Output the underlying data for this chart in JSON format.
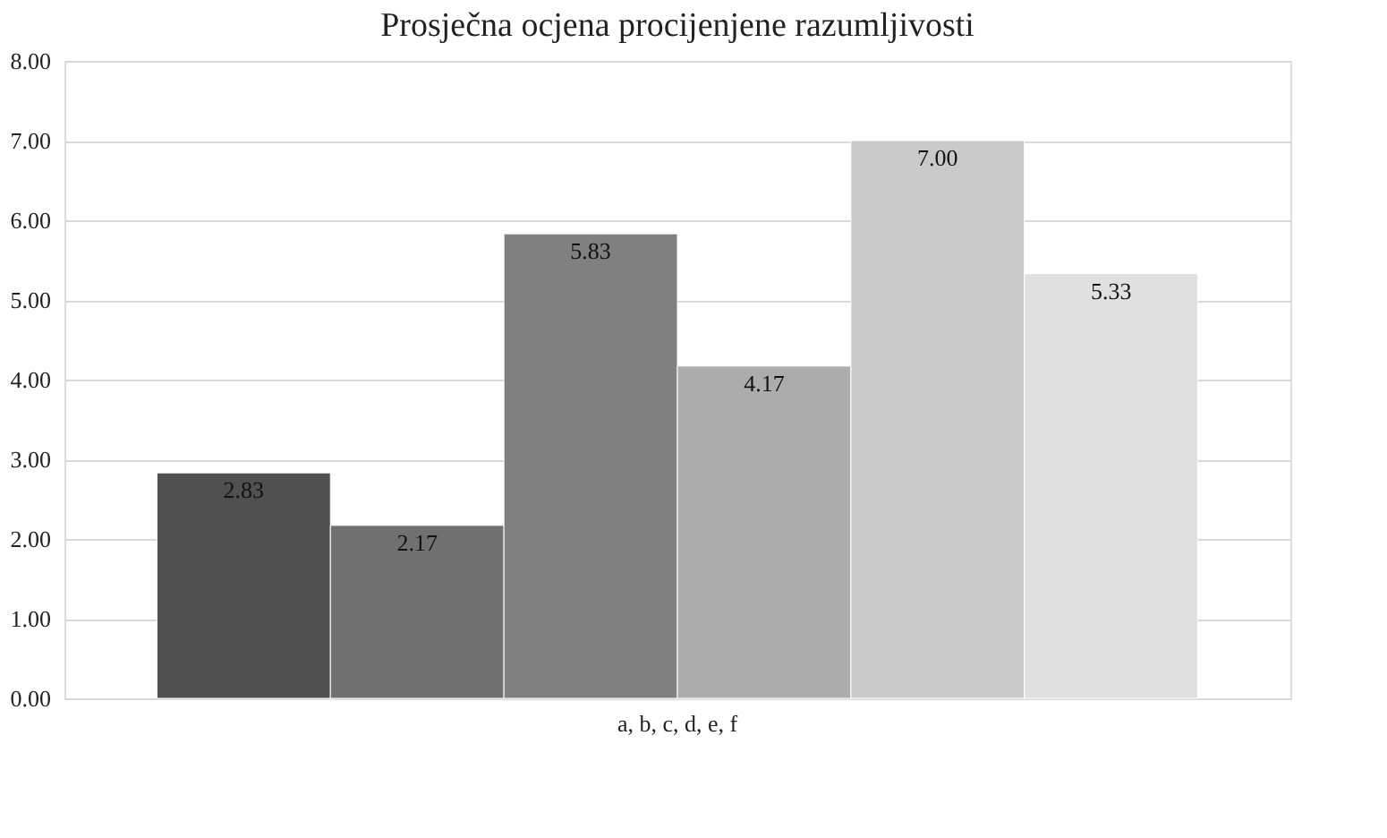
{
  "chart_data": {
    "type": "bar",
    "title": "Prosječna ocjena procijenjene razumljivosti",
    "categories": [
      "a, b, c, d, e, f"
    ],
    "series": [
      {
        "color": "#505050",
        "values": [
          2.83
        ],
        "value_labels": [
          "2.83"
        ]
      },
      {
        "color": "#707070",
        "values": [
          2.17
        ],
        "value_labels": [
          "2.17"
        ]
      },
      {
        "color": "#808080",
        "values": [
          5.83
        ],
        "value_labels": [
          "5.83"
        ]
      },
      {
        "color": "#acacac",
        "values": [
          4.17
        ],
        "value_labels": [
          "4.17"
        ]
      },
      {
        "color": "#cacaca",
        "values": [
          7.0
        ],
        "value_labels": [
          "7.00"
        ]
      },
      {
        "color": "#e0e0e0",
        "values": [
          5.33
        ],
        "value_labels": [
          "5.33"
        ]
      }
    ],
    "ylim": [
      0,
      8
    ],
    "yticks": [
      {
        "value": 0,
        "label": "0.00"
      },
      {
        "value": 1,
        "label": "1.00"
      },
      {
        "value": 2,
        "label": "2.00"
      },
      {
        "value": 3,
        "label": "3.00"
      },
      {
        "value": 4,
        "label": "4.00"
      },
      {
        "value": 5,
        "label": "5.00"
      },
      {
        "value": 6,
        "label": "6.00"
      },
      {
        "value": 7,
        "label": "7.00"
      },
      {
        "value": 8,
        "label": "8.00"
      }
    ],
    "grid": "y",
    "legend": false
  }
}
